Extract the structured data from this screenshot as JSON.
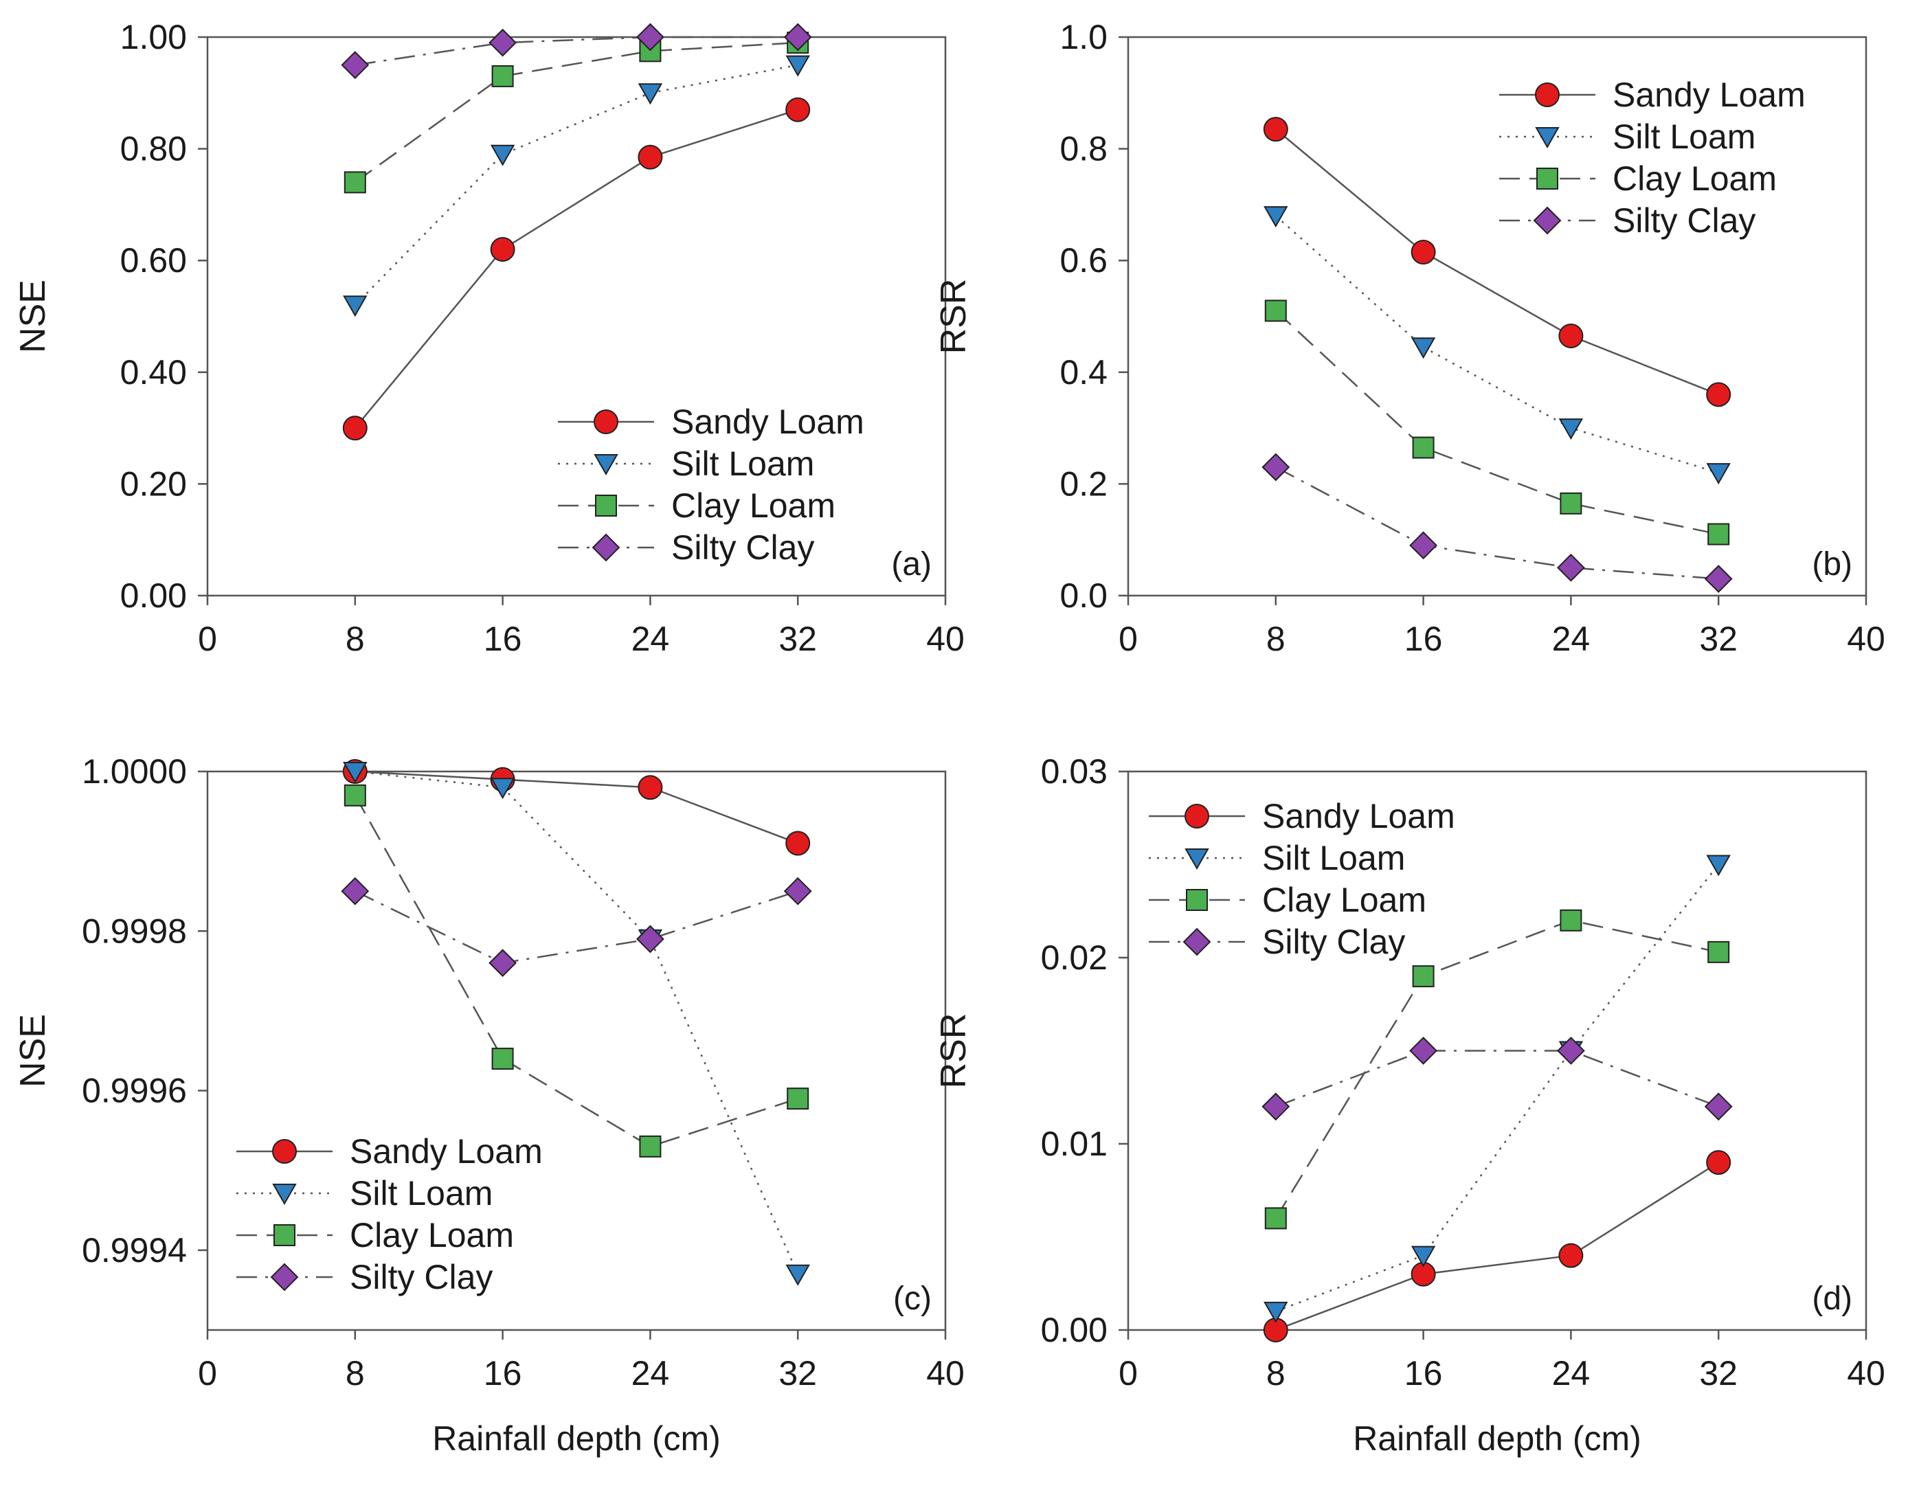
{
  "series_style": {
    "Sandy Loam": {
      "marker": "circle",
      "color": "#e31a1c",
      "dash": "solid"
    },
    "Silt Loam": {
      "marker": "triangle-down",
      "color": "#2e7fc1",
      "dash": "dotted"
    },
    "Clay Loam": {
      "marker": "square",
      "color": "#4caf50",
      "dash": "dashed"
    },
    "Silty Clay": {
      "marker": "diamond",
      "color": "#8e44ad",
      "dash": "dashdot"
    }
  },
  "chart_data": [
    {
      "type": "line",
      "panel_label": "(a)",
      "ylabel": "NSE",
      "xlabel": "",
      "xlim": [
        0,
        40
      ],
      "xticks": [
        0,
        8,
        16,
        24,
        32,
        40
      ],
      "ylim": [
        0,
        1
      ],
      "yticks": [
        0,
        0.2,
        0.4,
        0.6,
        0.8,
        1.0
      ],
      "ytick_labels": [
        "0.00",
        "0.20",
        "0.40",
        "0.60",
        "0.80",
        "1.00"
      ],
      "legend_position": "bottom-right",
      "x": [
        8,
        16,
        24,
        32
      ],
      "series": [
        {
          "name": "Sandy Loam",
          "values": [
            0.3,
            0.62,
            0.785,
            0.87
          ]
        },
        {
          "name": "Silt Loam",
          "values": [
            0.52,
            0.79,
            0.9,
            0.95
          ]
        },
        {
          "name": "Clay Loam",
          "values": [
            0.74,
            0.93,
            0.975,
            0.99
          ]
        },
        {
          "name": "Silty Clay",
          "values": [
            0.95,
            0.99,
            1.0,
            1.0
          ]
        }
      ]
    },
    {
      "type": "line",
      "panel_label": "(b)",
      "ylabel": "RSR",
      "xlabel": "",
      "xlim": [
        0,
        40
      ],
      "xticks": [
        0,
        8,
        16,
        24,
        32,
        40
      ],
      "ylim": [
        0,
        1
      ],
      "yticks": [
        0,
        0.2,
        0.4,
        0.6,
        0.8,
        1.0
      ],
      "ytick_labels": [
        "0.0",
        "0.2",
        "0.4",
        "0.6",
        "0.8",
        "1.0"
      ],
      "legend_position": "top-right",
      "x": [
        8,
        16,
        24,
        32
      ],
      "series": [
        {
          "name": "Sandy Loam",
          "values": [
            0.835,
            0.615,
            0.465,
            0.36
          ]
        },
        {
          "name": "Silt Loam",
          "values": [
            0.68,
            0.445,
            0.3,
            0.22
          ]
        },
        {
          "name": "Clay Loam",
          "values": [
            0.51,
            0.265,
            0.165,
            0.11
          ]
        },
        {
          "name": "Silty Clay",
          "values": [
            0.23,
            0.09,
            0.05,
            0.03
          ]
        }
      ]
    },
    {
      "type": "line",
      "panel_label": "(c)",
      "ylabel": "NSE",
      "xlabel": "Rainfall depth (cm)",
      "xlim": [
        0,
        40
      ],
      "xticks": [
        0,
        8,
        16,
        24,
        32,
        40
      ],
      "ylim": [
        0.9993,
        1.0
      ],
      "yticks": [
        0.9994,
        0.9996,
        0.9998,
        1.0
      ],
      "ytick_labels": [
        "0.9994",
        "0.9996",
        "0.9998",
        "1.0000"
      ],
      "legend_position": "bottom-left",
      "x": [
        8,
        16,
        24,
        32
      ],
      "series": [
        {
          "name": "Sandy Loam",
          "values": [
            1.0,
            0.99999,
            0.99998,
            0.99991
          ]
        },
        {
          "name": "Silt Loam",
          "values": [
            1.0,
            0.99998,
            0.99979,
            0.99937
          ]
        },
        {
          "name": "Clay Loam",
          "values": [
            0.99997,
            0.99964,
            0.99953,
            0.99959
          ]
        },
        {
          "name": "Silty Clay",
          "values": [
            0.99985,
            0.99976,
            0.99979,
            0.99985
          ]
        }
      ]
    },
    {
      "type": "line",
      "panel_label": "(d)",
      "ylabel": "RSR",
      "xlabel": "Rainfall depth (cm)",
      "xlim": [
        0,
        40
      ],
      "xticks": [
        0,
        8,
        16,
        24,
        32,
        40
      ],
      "ylim": [
        0,
        0.03
      ],
      "yticks": [
        0,
        0.01,
        0.02,
        0.03
      ],
      "ytick_labels": [
        "0.00",
        "0.01",
        "0.02",
        "0.03"
      ],
      "legend_position": "top-left",
      "x": [
        8,
        16,
        24,
        32
      ],
      "series": [
        {
          "name": "Sandy Loam",
          "values": [
            0.0,
            0.003,
            0.004,
            0.009
          ]
        },
        {
          "name": "Silt Loam",
          "values": [
            0.001,
            0.004,
            0.015,
            0.025
          ]
        },
        {
          "name": "Clay Loam",
          "values": [
            0.006,
            0.019,
            0.022,
            0.0203
          ]
        },
        {
          "name": "Silty Clay",
          "values": [
            0.012,
            0.015,
            0.015,
            0.012
          ]
        }
      ]
    }
  ]
}
